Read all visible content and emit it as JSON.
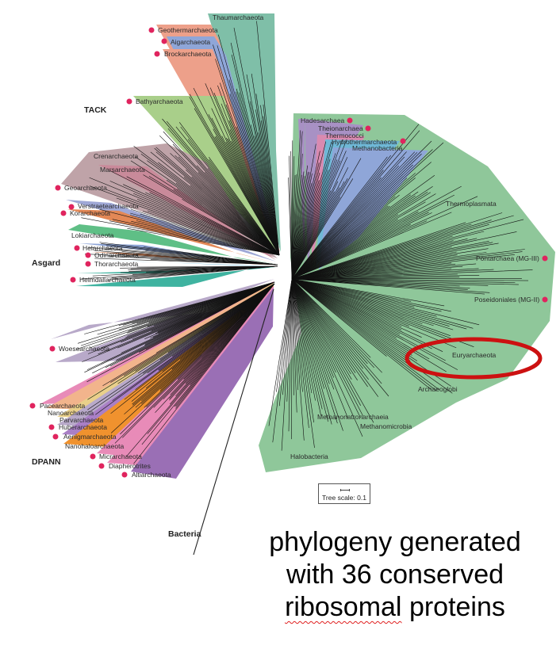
{
  "groups": {
    "tack": "TACK",
    "asgard": "Asgard",
    "dpann": "DPANN",
    "bacteria": "Bacteria"
  },
  "clades": {
    "thaumarchaeota": "Thaumarchaeota",
    "geothermarchaeota": "Geothermarchaeota",
    "aigarchaeota": "Aigarchaeota",
    "brockarchaeota": "Brockarchaeota",
    "bathyarchaeota": "Bathyarchaeota",
    "crenarchaeota": "Crenarchaeota",
    "marsarchaeota": "Marsarchaeota",
    "geoarchaeota": "Geoarchaeota",
    "verstraetearchaeota": "Verstraetearchaeota",
    "korarchaeota": "Korarchaeota",
    "lokiarchaeota": "Lokiarchaeota",
    "helarchaeota": "Helarchaeota",
    "odinarchaeota": "Odinarchaeota",
    "thorarchaeota": "Thorarchaeota",
    "heimdallarchaeota": "Heimdallarchaeota",
    "woesearchaeota": "Woesearchaeota",
    "pacearchaeota": "Pacearchaeota",
    "nanoarchaeota": "Nanoarchaeota",
    "parvarchaeota": "Parvarchaeota",
    "huberarchaeota": "Huberarchaeota",
    "aenigmarchaeota": "Aenigmarchaeota",
    "nanohaloarchaeota": "Nanohaloarchaeota",
    "micrarchaeota": "Micrarchaeota",
    "diapherotrites": "Diapherotrites",
    "altiarchaeota": "Altiarchaeota",
    "hadesarchaea": "Hadesarchaea",
    "theionarchaea": "Theionarchaea",
    "thermococci": "Thermococci",
    "hydrothermarchaeota": "Hydrothermarchaeota",
    "methanobacteria": "Methanobacteria",
    "thermoplasmata": "Thermoplasmata",
    "pontarchaea": "Pontarchaea (MG-III)",
    "poseidoniales": "Poseidoniales (MG-II)",
    "euryarchaeota": "Euryarchaeota",
    "archaeoglobi": "Archaeoglobi",
    "methanonatronarchaeia": "Methanonatronarchaeia",
    "methanomicrobia": "Methanomicrobia",
    "halobacteria": "Halobacteria"
  },
  "scale": {
    "label": "Tree scale: 0.1"
  },
  "caption": {
    "line1": "phylogeny generated",
    "line2": "with 36 conserved",
    "line3_a": "ribosomal",
    "line3_b": "proteins"
  },
  "colors": {
    "eury_green": "#8fc79a",
    "tack_green": "#a9cf8a",
    "thaum_teal": "#7fbfa8",
    "brock_salmon": "#eda08a",
    "aigar_blue": "#8fa6d8",
    "cren_mauve": "#bfa3a8",
    "asgard_green": "#5fbf86",
    "heimdall_teal": "#3fb3a0",
    "dpann_lavender": "#b8a9c9",
    "dpann_purple": "#9a6fb5",
    "dpann_orange": "#f0922e",
    "dpann_pink": "#e88bb8",
    "highlight_red": "#cc1111",
    "dot_red": "#e0245e"
  }
}
